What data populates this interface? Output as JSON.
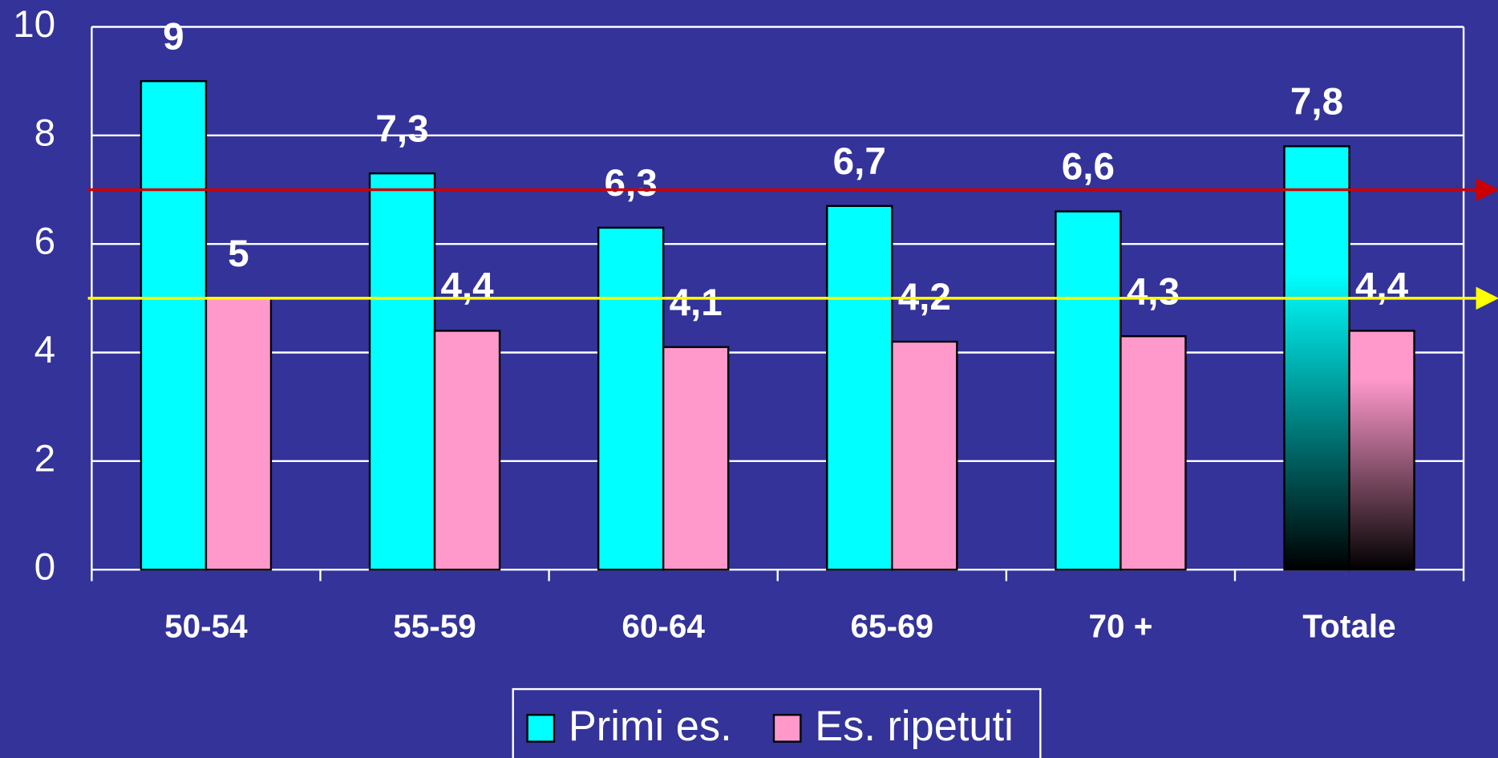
{
  "chart_data": {
    "type": "bar",
    "categories": [
      "50-54",
      "55-59",
      "60-64",
      "65-69",
      "70 +",
      "Totale"
    ],
    "series": [
      {
        "name": "Primi es.",
        "color": "#00ffff",
        "values": [
          9,
          7.3,
          6.3,
          6.7,
          6.6,
          7.8
        ],
        "value_labels": [
          "9",
          "7,3",
          "6,3",
          "6,7",
          "6,6",
          "7,8"
        ]
      },
      {
        "name": "Es. ripetuti",
        "color": "#ff99cc",
        "values": [
          5,
          4.4,
          4.1,
          4.2,
          4.3,
          4.4
        ],
        "value_labels": [
          "5",
          "4,4",
          "4,1",
          "4,2",
          "4,3",
          "4,4"
        ]
      }
    ],
    "reference_lines": [
      {
        "value": 7,
        "color": "#cc0000"
      },
      {
        "value": 5,
        "color": "#ffff00"
      }
    ],
    "ylim": [
      0,
      10
    ],
    "yticks": [
      0,
      2,
      4,
      6,
      8,
      10
    ],
    "grid": true,
    "legend": "bottom"
  }
}
